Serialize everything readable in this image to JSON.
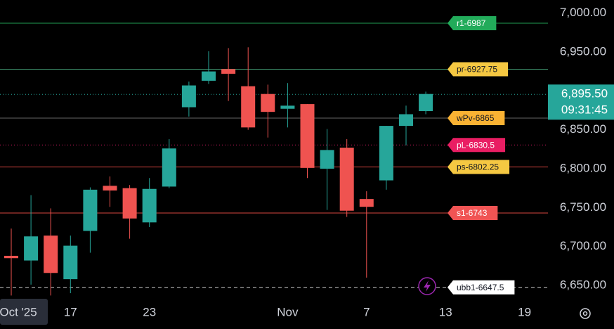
{
  "chart_data": {
    "type": "candlestick",
    "categories": [
      "Oct '25",
      null,
      null,
      "17",
      null,
      null,
      null,
      "23",
      null,
      null,
      null,
      null,
      null,
      null,
      "Nov",
      null,
      null,
      null,
      "7",
      null,
      null,
      null,
      "13",
      null,
      null,
      null,
      "19"
    ],
    "open": [
      6688,
      6682,
      6714,
      6658,
      6720,
      6778,
      6775,
      6731,
      6777,
      6879,
      6913,
      6928,
      6906,
      6896,
      6877,
      6883,
      6800,
      6827,
      6761,
      6785,
      6855,
      6874,
      null,
      null,
      null,
      null,
      null
    ],
    "high": [
      6723,
      6766,
      6749,
      6714,
      6776,
      6790,
      6779,
      6788,
      6838,
      6912,
      6951,
      6955,
      6956,
      6908,
      6910,
      6883,
      6851,
      6838,
      6771,
      6855,
      6881,
      6899,
      null,
      null,
      null,
      null,
      null
    ],
    "low": [
      6637,
      6651,
      6637,
      6640,
      6692,
      6751,
      6710,
      6725,
      6775,
      6867,
      6909,
      6887,
      6850,
      6840,
      6853,
      6788,
      6747,
      6738,
      6660,
      6773,
      6830,
      6870,
      null,
      null,
      null,
      null,
      null
    ],
    "close": [
      6685,
      6713,
      6666,
      6701,
      6773,
      6772,
      6736,
      6774,
      6826,
      6907,
      6925,
      6922,
      6853,
      6873,
      6881,
      6801,
      6824,
      6746,
      6751,
      6855,
      6870,
      6896,
      null,
      null,
      null,
      null,
      null
    ],
    "up_color": "#26a69a",
    "down_color": "#ef5350",
    "ylim": [
      6628.3,
      7016.8
    ],
    "yticks": [
      {
        "value": 6650,
        "label": "6,650.00"
      },
      {
        "value": 6700,
        "label": "6,700.00"
      },
      {
        "value": 6750,
        "label": "6,750.00"
      },
      {
        "value": 6800,
        "label": "6,800.00"
      },
      {
        "value": 6850,
        "label": "6,850.00"
      },
      {
        "value": 6950,
        "label": "6,950.00"
      },
      {
        "value": 7000,
        "label": "7,000.00"
      }
    ],
    "levels": [
      {
        "label": "r1-6987",
        "value": 6987,
        "color": "#22ab5a",
        "text_color": "#ffffff",
        "line_color": "#1f9d55",
        "style": "solid"
      },
      {
        "label": "pr-6927.75",
        "value": 6927.75,
        "color": "#f5c842",
        "text_color": "#131722",
        "line_color": "#3d8f6a",
        "style": "solid"
      },
      {
        "label": "wPv-6865",
        "value": 6865,
        "color": "#f9b233",
        "text_color": "#131722",
        "line_color": "#666666",
        "style": "solid"
      },
      {
        "label": "pL-6830.5",
        "value": 6830.5,
        "color": "#e91e63",
        "text_color": "#ffffff",
        "line_color": "#c2185b",
        "style": "dotted"
      },
      {
        "label": "ps-6802.25",
        "value": 6802.25,
        "color": "#f5c842",
        "text_color": "#131722",
        "line_color": "#d9463f",
        "style": "solid"
      },
      {
        "label": "s1-6743",
        "value": 6743,
        "color": "#f05454",
        "text_color": "#ffffff",
        "line_color": "#d9463f",
        "style": "solid"
      },
      {
        "label": "ubb1-6647.5",
        "value": 6647.5,
        "color": "#ffffff",
        "text_color": "#131722",
        "line_color": "#cccccc",
        "style": "dashed"
      }
    ],
    "last": {
      "value": 6895.5,
      "label": "6,895.50",
      "time": "09:31:45"
    }
  }
}
